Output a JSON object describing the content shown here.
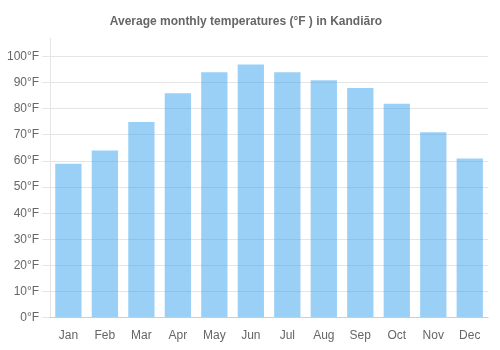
{
  "chart_data": {
    "type": "bar",
    "title": "Average monthly temperatures (°F ) in Kandiāro",
    "categories": [
      "Jan",
      "Feb",
      "Mar",
      "Apr",
      "May",
      "Jun",
      "Jul",
      "Aug",
      "Sep",
      "Oct",
      "Nov",
      "Dec"
    ],
    "values": [
      59,
      64,
      75,
      86,
      94,
      97,
      94,
      91,
      88,
      82,
      71,
      61
    ],
    "ylim": [
      0,
      107
    ],
    "yticks": [
      {
        "value": 0,
        "label": "0°F"
      },
      {
        "value": 10,
        "label": "10°F"
      },
      {
        "value": 20,
        "label": "20°F"
      },
      {
        "value": 30,
        "label": "30°F"
      },
      {
        "value": 40,
        "label": "40°F"
      },
      {
        "value": 50,
        "label": "50°F"
      },
      {
        "value": 60,
        "label": "60°F"
      },
      {
        "value": 70,
        "label": "70°F"
      },
      {
        "value": 80,
        "label": "80°F"
      },
      {
        "value": 90,
        "label": "90°F"
      },
      {
        "value": 100,
        "label": "100°F"
      }
    ],
    "grid": true
  }
}
